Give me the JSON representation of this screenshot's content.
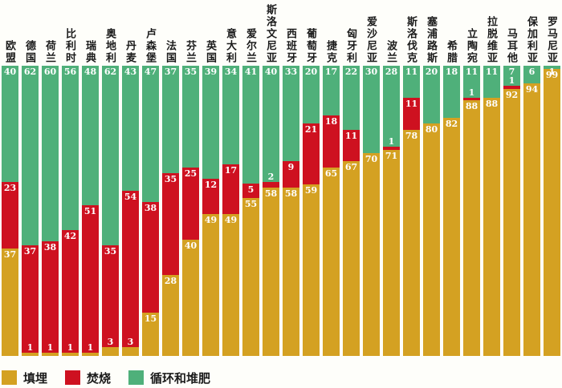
{
  "chart_data": {
    "type": "bar",
    "stacked": true,
    "orientation": "vertical",
    "unit": "%",
    "value_range": [
      0,
      100
    ],
    "grid": false,
    "legend_position": "bottom-left",
    "bar_label_color": "#FFFFFF",
    "categories": [
      "欧盟",
      "德国",
      "荷兰",
      "比利时",
      "瑞典",
      "奥地利",
      "丹麦",
      "卢森堡",
      "法国",
      "芬兰",
      "英国",
      "意大利",
      "爱尔兰",
      "斯洛文尼亚",
      "西班牙",
      "葡萄牙",
      "捷克",
      "匈牙利",
      "爱沙尼亚",
      "波兰",
      "斯洛伐克",
      "塞浦路斯",
      "希腊",
      "立陶宛",
      "拉脱维亚",
      "马耳他",
      "保加利亚",
      "罗马尼亚"
    ],
    "series": [
      {
        "name": "填埋",
        "color": "#D4A122",
        "values": [
          37,
          1,
          1,
          1,
          1,
          3,
          3,
          15,
          28,
          40,
          49,
          49,
          55,
          58,
          58,
          59,
          65,
          67,
          70,
          71,
          78,
          80,
          82,
          88,
          88,
          92,
          94,
          99
        ]
      },
      {
        "name": "焚烧",
        "color": "#CE1120",
        "values": [
          23,
          37,
          38,
          42,
          51,
          35,
          54,
          38,
          35,
          25,
          12,
          17,
          5,
          2,
          9,
          21,
          18,
          11,
          0,
          1,
          11,
          0,
          0,
          1,
          0,
          1,
          0,
          0
        ]
      },
      {
        "name": "循环和堆肥",
        "color": "#4FB07A",
        "values": [
          40,
          62,
          60,
          56,
          48,
          62,
          43,
          47,
          37,
          35,
          39,
          34,
          41,
          40,
          33,
          20,
          17,
          22,
          30,
          28,
          11,
          20,
          18,
          11,
          11,
          7,
          6,
          1
        ]
      }
    ]
  }
}
